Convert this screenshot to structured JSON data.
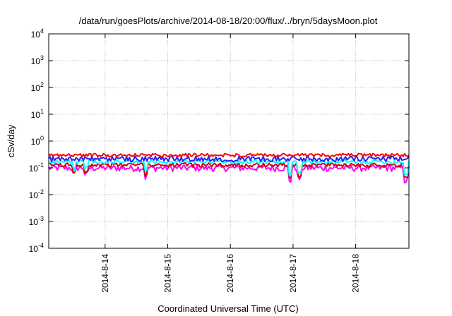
{
  "chart_data": {
    "type": "line",
    "title": "/data/run/goesPlots/archive/2014-08-18/20:00/flux/../bryn/5daysMoon.plot",
    "xlabel": "Coordinated Universal Time (UTC)",
    "ylabel": "cSv/day",
    "yscale": "log",
    "ylim": [
      0.0001,
      10000
    ],
    "xlim_days": [
      13.1,
      18.85
    ],
    "x_ticks": [
      {
        "label": "2014-8-14",
        "day": 14
      },
      {
        "label": "2014-8-15",
        "day": 15
      },
      {
        "label": "2014-8-16",
        "day": 16
      },
      {
        "label": "2014-8-17",
        "day": 17
      },
      {
        "label": "2014-8-18",
        "day": 18
      }
    ],
    "y_ticks": [
      {
        "base": "10",
        "exp": "-4",
        "value": 0.0001
      },
      {
        "base": "10",
        "exp": "-3",
        "value": 0.001
      },
      {
        "base": "10",
        "exp": "-2",
        "value": 0.01
      },
      {
        "base": "10",
        "exp": "-1",
        "value": 0.1
      },
      {
        "base": "10",
        "exp": "0",
        "value": 1
      },
      {
        "base": "10",
        "exp": "1",
        "value": 10
      },
      {
        "base": "10",
        "exp": "2",
        "value": 100
      },
      {
        "base": "10",
        "exp": "3",
        "value": 1000
      },
      {
        "base": "10",
        "exp": "4",
        "value": 10000
      }
    ],
    "grid": true,
    "legend": "none",
    "series": [
      {
        "color": "#ff00ff",
        "base": 0.1,
        "spread": 0.55
      },
      {
        "color": "#cc0000",
        "base": 0.13,
        "spread": 0.35
      },
      {
        "color": "#00ffff",
        "base": 0.17,
        "spread": 0.35
      },
      {
        "color": "#2222ff",
        "base": 0.22,
        "spread": 0.45
      },
      {
        "color": "#ff0000",
        "base": 0.3,
        "spread": 0.3
      }
    ],
    "dips": [
      {
        "day": 13.5,
        "factor": 0.55
      },
      {
        "day": 13.7,
        "factor": 0.6
      },
      {
        "day": 14.65,
        "factor": 0.45
      },
      {
        "day": 16.95,
        "factor": 0.35
      },
      {
        "day": 17.1,
        "factor": 0.4
      },
      {
        "day": 18.8,
        "factor": 0.35
      }
    ]
  }
}
